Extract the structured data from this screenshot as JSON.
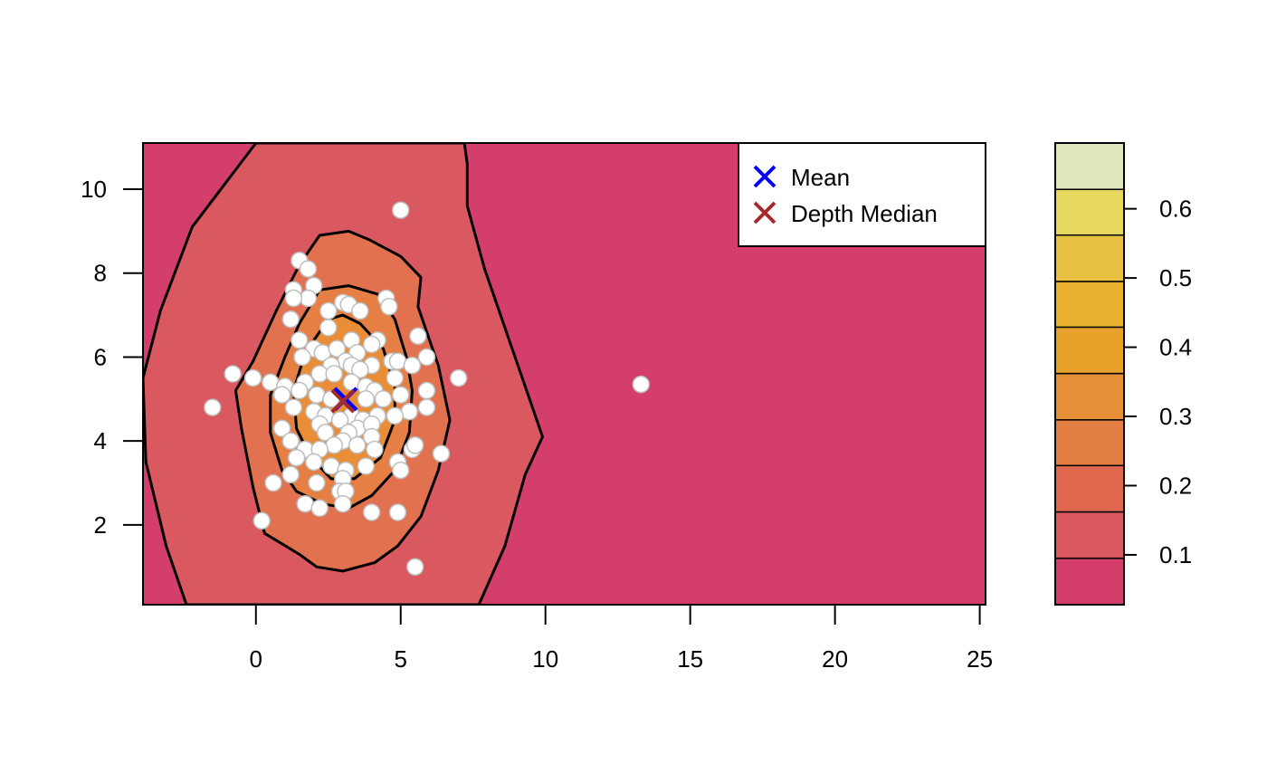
{
  "chart_data": {
    "type": "contour",
    "title": "",
    "xlabel": "",
    "ylabel": "",
    "xlim": [
      -3.9,
      25.2
    ],
    "ylim": [
      0.1,
      11.1
    ],
    "x_ticks": [
      0,
      5,
      10,
      15,
      20,
      25
    ],
    "y_ticks": [
      2,
      4,
      6,
      8,
      10
    ],
    "x_tick_labels": [
      "0",
      "5",
      "10",
      "15",
      "20",
      "25"
    ],
    "y_tick_labels": [
      "2",
      "4",
      "6",
      "8",
      "10"
    ],
    "background_color": "#d33f6a",
    "contours": [
      {
        "level": 0.1,
        "fill": "#da5860",
        "points": [
          [
            0.0,
            11.1
          ],
          [
            -2.2,
            9.1
          ],
          [
            -3.3,
            7.1
          ],
          [
            -3.9,
            5.5
          ],
          [
            -3.8,
            3.5
          ],
          [
            -3.1,
            1.5
          ],
          [
            -2.4,
            0.1
          ],
          [
            7.7,
            0.1
          ],
          [
            8.6,
            1.5
          ],
          [
            9.3,
            3.2
          ],
          [
            9.9,
            4.1
          ],
          [
            8.9,
            6.1
          ],
          [
            7.9,
            8.1
          ],
          [
            7.3,
            9.6
          ],
          [
            7.3,
            10.6
          ],
          [
            7.2,
            11.1
          ]
        ]
      },
      {
        "level": 0.2,
        "fill": "#e2714f",
        "points": [
          [
            1.5,
            8.2
          ],
          [
            0.7,
            7.1
          ],
          [
            -0.1,
            5.9
          ],
          [
            -0.7,
            5.2
          ],
          [
            -0.5,
            4.3
          ],
          [
            -0.1,
            2.9
          ],
          [
            0.3,
            1.8
          ],
          [
            1.5,
            1.3
          ],
          [
            2.1,
            1.0
          ],
          [
            3.0,
            0.9
          ],
          [
            4.1,
            1.1
          ],
          [
            4.9,
            1.5
          ],
          [
            5.7,
            2.2
          ],
          [
            6.3,
            3.3
          ],
          [
            6.7,
            4.5
          ],
          [
            6.3,
            5.8
          ],
          [
            5.6,
            7.2
          ],
          [
            5.7,
            7.9
          ],
          [
            5.0,
            8.4
          ],
          [
            3.9,
            8.8
          ],
          [
            3.2,
            9.0
          ],
          [
            2.2,
            8.9
          ]
        ]
      },
      {
        "level": 0.3,
        "fill": "#e67f44",
        "points": [
          [
            2.2,
            7.6
          ],
          [
            1.5,
            6.8
          ],
          [
            1.0,
            6.0
          ],
          [
            0.5,
            5.1
          ],
          [
            0.5,
            4.2
          ],
          [
            0.9,
            3.3
          ],
          [
            1.4,
            2.8
          ],
          [
            2.3,
            2.5
          ],
          [
            3.2,
            2.4
          ],
          [
            4.0,
            2.7
          ],
          [
            4.8,
            3.3
          ],
          [
            5.3,
            4.2
          ],
          [
            5.4,
            5.2
          ],
          [
            5.2,
            6.0
          ],
          [
            4.8,
            6.9
          ],
          [
            4.2,
            7.5
          ],
          [
            3.2,
            7.7
          ]
        ]
      },
      {
        "level": 0.4,
        "fill": "#e98d37",
        "points": [
          [
            2.5,
            6.9
          ],
          [
            1.7,
            6.1
          ],
          [
            1.3,
            5.2
          ],
          [
            1.4,
            4.3
          ],
          [
            1.9,
            3.6
          ],
          [
            2.6,
            3.1
          ],
          [
            3.4,
            3.1
          ],
          [
            4.3,
            3.6
          ],
          [
            4.8,
            4.5
          ],
          [
            4.8,
            5.3
          ],
          [
            4.4,
            6.2
          ],
          [
            3.6,
            6.8
          ],
          [
            3.0,
            7.0
          ]
        ]
      }
    ],
    "series": [
      {
        "name": "Mean",
        "type": "marker",
        "marker": "x",
        "color": "#0000ff",
        "x": 3.1,
        "y": 5.0
      },
      {
        "name": "Depth Median",
        "type": "marker",
        "marker": "x",
        "color": "#a52a2a",
        "x": 3.0,
        "y": 4.95
      },
      {
        "type": "scatter",
        "color": "#ffffff",
        "stroke": "#bebebe",
        "points": [
          [
            5.0,
            9.5
          ],
          [
            1.5,
            8.3
          ],
          [
            1.8,
            8.1
          ],
          [
            2.0,
            7.7
          ],
          [
            1.3,
            7.6
          ],
          [
            1.8,
            7.4
          ],
          [
            1.3,
            7.4
          ],
          [
            4.5,
            7.4
          ],
          [
            4.6,
            7.2
          ],
          [
            3.0,
            7.3
          ],
          [
            3.2,
            7.25
          ],
          [
            3.6,
            7.1
          ],
          [
            2.5,
            7.1
          ],
          [
            1.2,
            6.9
          ],
          [
            2.5,
            6.7
          ],
          [
            3.3,
            6.4
          ],
          [
            1.5,
            6.4
          ],
          [
            4.2,
            6.4
          ],
          [
            4.0,
            6.3
          ],
          [
            5.6,
            6.5
          ],
          [
            2.0,
            6.2
          ],
          [
            2.3,
            6.1
          ],
          [
            2.8,
            6.2
          ],
          [
            3.5,
            6.1
          ],
          [
            5.9,
            6.0
          ],
          [
            1.6,
            6.0
          ],
          [
            4.7,
            5.9
          ],
          [
            3.1,
            5.9
          ],
          [
            2.6,
            5.8
          ],
          [
            3.3,
            5.8
          ],
          [
            4.9,
            5.9
          ],
          [
            5.4,
            5.8
          ],
          [
            4.0,
            5.8
          ],
          [
            3.6,
            5.7
          ],
          [
            2.2,
            5.6
          ],
          [
            -0.8,
            5.6
          ],
          [
            -0.1,
            5.5
          ],
          [
            2.7,
            5.6
          ],
          [
            4.8,
            5.5
          ],
          [
            7.0,
            5.5
          ],
          [
            0.5,
            5.4
          ],
          [
            1.7,
            5.4
          ],
          [
            3.3,
            5.4
          ],
          [
            1.0,
            5.3
          ],
          [
            3.8,
            5.3
          ],
          [
            4.1,
            5.2
          ],
          [
            5.0,
            5.1
          ],
          [
            5.9,
            5.2
          ],
          [
            1.5,
            5.2
          ],
          [
            2.1,
            5.1
          ],
          [
            0.9,
            5.1
          ],
          [
            4.4,
            5.0
          ],
          [
            2.6,
            5.0
          ],
          [
            3.8,
            5.0
          ],
          [
            5.9,
            4.8
          ],
          [
            -1.5,
            4.8
          ],
          [
            1.3,
            4.8
          ],
          [
            5.3,
            4.7
          ],
          [
            2.0,
            4.7
          ],
          [
            2.4,
            4.6
          ],
          [
            4.2,
            4.6
          ],
          [
            4.8,
            4.6
          ],
          [
            3.3,
            4.6
          ],
          [
            2.9,
            4.5
          ],
          [
            3.7,
            4.5
          ],
          [
            2.2,
            4.4
          ],
          [
            3.5,
            4.3
          ],
          [
            4.0,
            4.4
          ],
          [
            0.9,
            4.3
          ],
          [
            2.4,
            4.2
          ],
          [
            3.2,
            4.2
          ],
          [
            4.0,
            4.1
          ],
          [
            3.0,
            4.0
          ],
          [
            1.2,
            4.0
          ],
          [
            2.7,
            3.9
          ],
          [
            3.5,
            3.9
          ],
          [
            1.7,
            3.8
          ],
          [
            2.2,
            3.8
          ],
          [
            4.1,
            3.8
          ],
          [
            5.4,
            3.8
          ],
          [
            5.5,
            3.9
          ],
          [
            6.4,
            3.7
          ],
          [
            1.4,
            3.6
          ],
          [
            2.0,
            3.5
          ],
          [
            4.9,
            3.5
          ],
          [
            2.6,
            3.4
          ],
          [
            3.1,
            3.3
          ],
          [
            5.0,
            3.3
          ],
          [
            3.8,
            3.4
          ],
          [
            1.2,
            3.2
          ],
          [
            3.0,
            3.1
          ],
          [
            2.1,
            3.0
          ],
          [
            0.6,
            3.0
          ],
          [
            2.9,
            2.8
          ],
          [
            3.1,
            2.8
          ],
          [
            1.7,
            2.5
          ],
          [
            2.2,
            2.4
          ],
          [
            3.0,
            2.5
          ],
          [
            4.0,
            2.3
          ],
          [
            4.9,
            2.3
          ],
          [
            0.2,
            2.1
          ],
          [
            5.5,
            1.0
          ],
          [
            13.3,
            5.35
          ]
        ]
      }
    ],
    "legend": {
      "position": "top-right",
      "entries": [
        "Mean",
        "Depth Median"
      ]
    },
    "colorbar": {
      "ticks": [
        0.1,
        0.2,
        0.3,
        0.4,
        0.5,
        0.6
      ],
      "tick_labels": [
        "0.1",
        "0.2",
        "0.3",
        "0.4",
        "0.5",
        "0.6"
      ],
      "range": [
        0.028,
        0.695
      ],
      "bands": [
        {
          "from": 0.028,
          "to": 0.095,
          "color": "#d33f6a"
        },
        {
          "from": 0.095,
          "to": 0.162,
          "color": "#da5860"
        },
        {
          "from": 0.162,
          "to": 0.229,
          "color": "#e0684f"
        },
        {
          "from": 0.229,
          "to": 0.295,
          "color": "#e47f44"
        },
        {
          "from": 0.295,
          "to": 0.362,
          "color": "#e69038"
        },
        {
          "from": 0.362,
          "to": 0.429,
          "color": "#e8a12a"
        },
        {
          "from": 0.429,
          "to": 0.495,
          "color": "#e9b12f"
        },
        {
          "from": 0.495,
          "to": 0.562,
          "color": "#e8c143"
        },
        {
          "from": 0.562,
          "to": 0.628,
          "color": "#e6d75e"
        },
        {
          "from": 0.628,
          "to": 0.695,
          "color": "#e2e6bd"
        }
      ]
    }
  }
}
